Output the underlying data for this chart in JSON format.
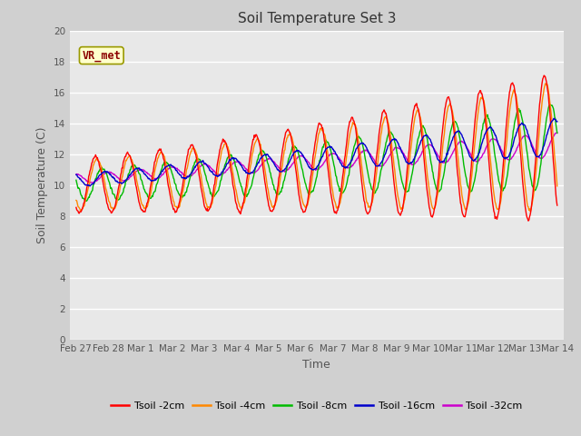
{
  "title": "Soil Temperature Set 3",
  "xlabel": "Time",
  "ylabel": "Soil Temperature (C)",
  "ylim": [
    0,
    20
  ],
  "yticks": [
    0,
    2,
    4,
    6,
    8,
    10,
    12,
    14,
    16,
    18,
    20
  ],
  "fig_bg_color": "#d0d0d0",
  "plot_bg_color": "#e8e8e8",
  "annotation_text": "VR_met",
  "annotation_color": "#8b0000",
  "annotation_bg": "#ffffcc",
  "legend_entries": [
    "Tsoil -2cm",
    "Tsoil -4cm",
    "Tsoil -8cm",
    "Tsoil -16cm",
    "Tsoil -32cm"
  ],
  "line_colors": [
    "#ff0000",
    "#ff8800",
    "#00bb00",
    "#0000cc",
    "#cc00cc"
  ],
  "x_tick_labels": [
    "Feb 27",
    "Feb 28",
    "Mar 1",
    "Mar 2",
    "Mar 3",
    "Mar 4",
    "Mar 5",
    "Mar 6",
    "Mar 7",
    "Mar 8",
    "Mar 9",
    "Mar 10",
    "Mar 11",
    "Mar 12",
    "Mar 13",
    "Mar 14"
  ],
  "n_days": 16,
  "pts_per_day": 48
}
